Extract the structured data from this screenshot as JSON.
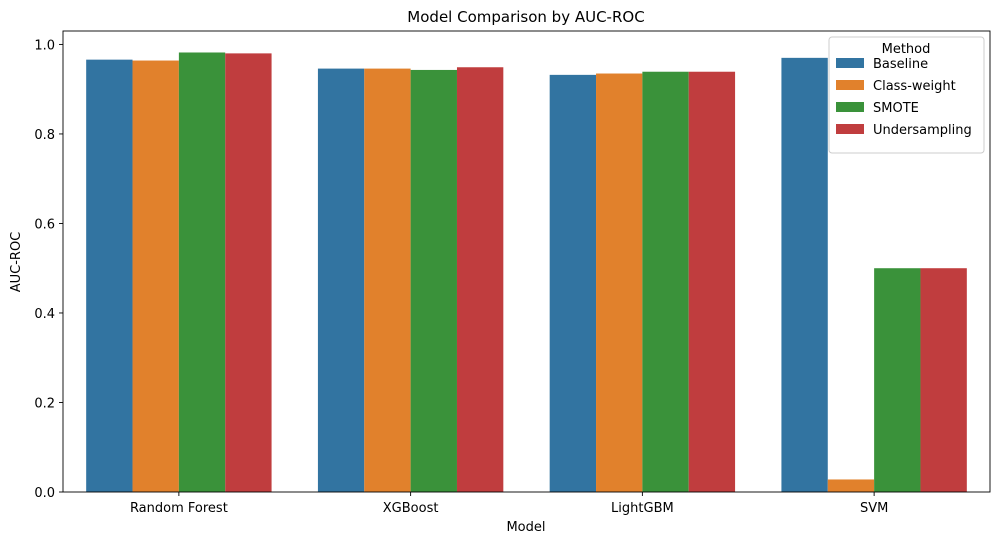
{
  "chart_data": {
    "type": "bar",
    "title": "Model Comparison by AUC-ROC",
    "xlabel": "Model",
    "ylabel": "AUC-ROC",
    "categories": [
      "Random Forest",
      "XGBoost",
      "LightGBM",
      "SVM"
    ],
    "series": [
      {
        "name": "Baseline",
        "color": "#3274a1",
        "values": [
          0.966,
          0.946,
          0.932,
          0.97
        ]
      },
      {
        "name": "Class-weight",
        "color": "#e1812c",
        "values": [
          0.964,
          0.946,
          0.935,
          0.028
        ]
      },
      {
        "name": "SMOTE",
        "color": "#3a923a",
        "values": [
          0.982,
          0.943,
          0.939,
          0.5
        ]
      },
      {
        "name": "Undersampling",
        "color": "#c03d3e",
        "values": [
          0.98,
          0.949,
          0.939,
          0.5
        ]
      }
    ],
    "ylim": [
      0,
      1.03
    ],
    "yticks": [
      "0.0",
      "0.2",
      "0.4",
      "0.6",
      "0.8",
      "1.0"
    ],
    "grid": false,
    "legend": {
      "title": "Method",
      "placement": "top-right"
    }
  }
}
